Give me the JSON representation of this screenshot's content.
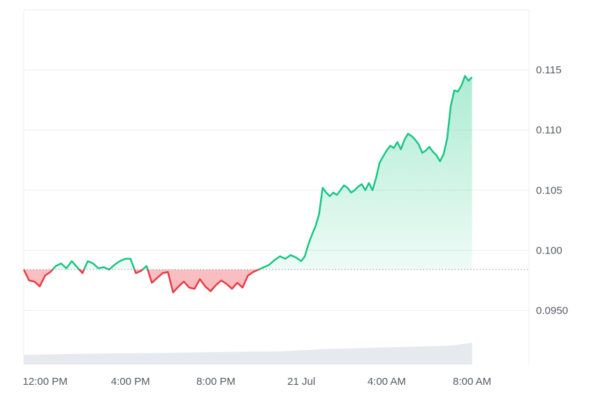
{
  "chart_data": {
    "type": "line",
    "baseline": 0.0984,
    "ylim": [
      0.0905,
      0.12
    ],
    "y_ticks": [
      "0.0950",
      "0.100",
      "0.105",
      "0.110",
      "0.115"
    ],
    "y_tick_values": [
      0.095,
      0.1,
      0.105,
      0.11,
      0.115
    ],
    "x_range": [
      "2023-07-20T11:00",
      "2023-07-21T10:40"
    ],
    "x_ticks": [
      {
        "label": "12:00 PM",
        "time": "2023-07-20T12:00"
      },
      {
        "label": "4:00 PM",
        "time": "2023-07-20T16:00"
      },
      {
        "label": "8:00 PM",
        "time": "2023-07-20T20:00"
      },
      {
        "label": "21 Jul",
        "time": "2023-07-21T00:00"
      },
      {
        "label": "4:00 AM",
        "time": "2023-07-21T04:00"
      },
      {
        "label": "8:00 AM",
        "time": "2023-07-21T08:00"
      }
    ],
    "series": [
      {
        "points": [
          [
            "2023-07-20T11:00",
            0.0984
          ],
          [
            "2023-07-20T11:15",
            0.0975
          ],
          [
            "2023-07-20T11:30",
            0.0974
          ],
          [
            "2023-07-20T11:45",
            0.097
          ],
          [
            "2023-07-20T12:00",
            0.0979
          ],
          [
            "2023-07-20T12:15",
            0.0982
          ],
          [
            "2023-07-20T12:30",
            0.0987
          ],
          [
            "2023-07-20T12:45",
            0.0989
          ],
          [
            "2023-07-20T13:00",
            0.0985
          ],
          [
            "2023-07-20T13:15",
            0.0991
          ],
          [
            "2023-07-20T13:30",
            0.0986
          ],
          [
            "2023-07-20T13:45",
            0.0981
          ],
          [
            "2023-07-20T14:00",
            0.0991
          ],
          [
            "2023-07-20T14:15",
            0.0989
          ],
          [
            "2023-07-20T14:30",
            0.0985
          ],
          [
            "2023-07-20T14:45",
            0.0986
          ],
          [
            "2023-07-20T15:00",
            0.0984
          ],
          [
            "2023-07-20T15:15",
            0.0988
          ],
          [
            "2023-07-20T15:30",
            0.0991
          ],
          [
            "2023-07-20T15:45",
            0.0993
          ],
          [
            "2023-07-20T16:00",
            0.0993
          ],
          [
            "2023-07-20T16:15",
            0.0981
          ],
          [
            "2023-07-20T16:30",
            0.0983
          ],
          [
            "2023-07-20T16:45",
            0.0987
          ],
          [
            "2023-07-20T17:00",
            0.0973
          ],
          [
            "2023-07-20T17:15",
            0.0977
          ],
          [
            "2023-07-20T17:30",
            0.0981
          ],
          [
            "2023-07-20T17:45",
            0.0982
          ],
          [
            "2023-07-20T18:00",
            0.0965
          ],
          [
            "2023-07-20T18:15",
            0.097
          ],
          [
            "2023-07-20T18:30",
            0.0974
          ],
          [
            "2023-07-20T18:45",
            0.0969
          ],
          [
            "2023-07-20T19:00",
            0.0968
          ],
          [
            "2023-07-20T19:15",
            0.0976
          ],
          [
            "2023-07-20T19:30",
            0.097
          ],
          [
            "2023-07-20T19:45",
            0.0966
          ],
          [
            "2023-07-20T20:00",
            0.0971
          ],
          [
            "2023-07-20T20:15",
            0.0975
          ],
          [
            "2023-07-20T20:30",
            0.0972
          ],
          [
            "2023-07-20T20:45",
            0.0968
          ],
          [
            "2023-07-20T21:00",
            0.0973
          ],
          [
            "2023-07-20T21:15",
            0.0969
          ],
          [
            "2023-07-20T21:30",
            0.0979
          ],
          [
            "2023-07-20T21:45",
            0.0982
          ],
          [
            "2023-07-20T22:00",
            0.0984
          ],
          [
            "2023-07-20T22:15",
            0.0986
          ],
          [
            "2023-07-20T22:30",
            0.0988
          ],
          [
            "2023-07-20T22:45",
            0.0992
          ],
          [
            "2023-07-20T23:00",
            0.0995
          ],
          [
            "2023-07-20T23:15",
            0.0993
          ],
          [
            "2023-07-20T23:30",
            0.0996
          ],
          [
            "2023-07-20T23:45",
            0.0994
          ],
          [
            "2023-07-21T00:00",
            0.0991
          ],
          [
            "2023-07-21T00:10",
            0.0995
          ],
          [
            "2023-07-21T00:20",
            0.1005
          ],
          [
            "2023-07-21T00:30",
            0.1013
          ],
          [
            "2023-07-21T00:40",
            0.102
          ],
          [
            "2023-07-21T00:50",
            0.103
          ],
          [
            "2023-07-21T01:00",
            0.1052
          ],
          [
            "2023-07-21T01:10",
            0.1048
          ],
          [
            "2023-07-21T01:20",
            0.1045
          ],
          [
            "2023-07-21T01:30",
            0.1048
          ],
          [
            "2023-07-21T01:40",
            0.1046
          ],
          [
            "2023-07-21T01:50",
            0.105
          ],
          [
            "2023-07-21T02:00",
            0.1054
          ],
          [
            "2023-07-21T02:10",
            0.1052
          ],
          [
            "2023-07-21T02:20",
            0.1048
          ],
          [
            "2023-07-21T02:30",
            0.105
          ],
          [
            "2023-07-21T02:40",
            0.1053
          ],
          [
            "2023-07-21T02:50",
            0.1055
          ],
          [
            "2023-07-21T03:00",
            0.105
          ],
          [
            "2023-07-21T03:10",
            0.1056
          ],
          [
            "2023-07-21T03:20",
            0.105
          ],
          [
            "2023-07-21T03:30",
            0.106
          ],
          [
            "2023-07-21T03:40",
            0.1073
          ],
          [
            "2023-07-21T03:50",
            0.1078
          ],
          [
            "2023-07-21T04:00",
            0.1083
          ],
          [
            "2023-07-21T04:10",
            0.1087
          ],
          [
            "2023-07-21T04:20",
            0.1085
          ],
          [
            "2023-07-21T04:30",
            0.109
          ],
          [
            "2023-07-21T04:40",
            0.1084
          ],
          [
            "2023-07-21T04:50",
            0.1092
          ],
          [
            "2023-07-21T05:00",
            0.1097
          ],
          [
            "2023-07-21T05:10",
            0.1095
          ],
          [
            "2023-07-21T05:20",
            0.1092
          ],
          [
            "2023-07-21T05:30",
            0.1088
          ],
          [
            "2023-07-21T05:40",
            0.1081
          ],
          [
            "2023-07-21T05:50",
            0.1083
          ],
          [
            "2023-07-21T06:00",
            0.1086
          ],
          [
            "2023-07-21T06:10",
            0.1082
          ],
          [
            "2023-07-21T06:20",
            0.1079
          ],
          [
            "2023-07-21T06:30",
            0.1074
          ],
          [
            "2023-07-21T06:40",
            0.108
          ],
          [
            "2023-07-21T06:50",
            0.1093
          ],
          [
            "2023-07-21T07:00",
            0.112
          ],
          [
            "2023-07-21T07:10",
            0.1133
          ],
          [
            "2023-07-21T07:20",
            0.1132
          ],
          [
            "2023-07-21T07:30",
            0.1137
          ],
          [
            "2023-07-21T07:40",
            0.1145
          ],
          [
            "2023-07-21T07:50",
            0.1141
          ],
          [
            "2023-07-21T08:00",
            0.1144
          ]
        ]
      }
    ],
    "volume": [
      [
        "2023-07-20T11:00",
        0.17
      ],
      [
        "2023-07-20T14:00",
        0.19
      ],
      [
        "2023-07-20T17:00",
        0.2
      ],
      [
        "2023-07-20T20:00",
        0.22
      ],
      [
        "2023-07-20T23:00",
        0.23
      ],
      [
        "2023-07-21T01:00",
        0.27
      ],
      [
        "2023-07-21T04:00",
        0.3
      ],
      [
        "2023-07-21T07:00",
        0.33
      ],
      [
        "2023-07-21T08:00",
        0.38
      ]
    ],
    "colors": {
      "up": "#16c784",
      "down": "#ea3943",
      "grid": "#eceef1",
      "baseline": "#9aa0a8",
      "volume": "#e6e9ee"
    }
  }
}
